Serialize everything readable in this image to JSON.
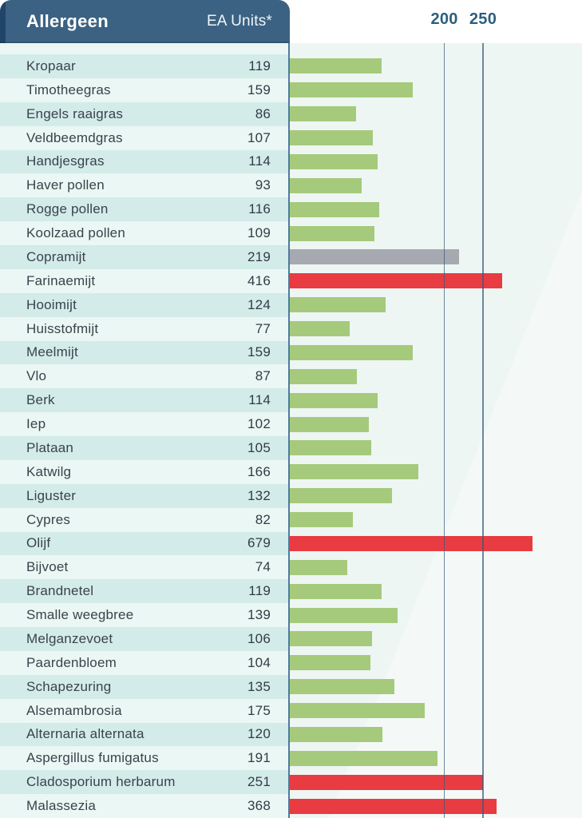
{
  "header": {
    "allergen_label": "Allergeen",
    "units_label": "EA Units*"
  },
  "axis": {
    "tick_labels": [
      "200",
      "250"
    ]
  },
  "colors": {
    "green": "#a5ca7c",
    "gray": "#a7a9b1",
    "red": "#e93b42",
    "header_bg": "#3b6282",
    "header_edge": "#214568",
    "row_dark": "#d3ecea",
    "row_light": "#eaf7f4",
    "chart_bg": "#edf6f3",
    "axis_line": "#4d7c9b",
    "tick_text": "#2c5e7f"
  },
  "chart_data": {
    "type": "bar",
    "orientation": "horizontal",
    "title": "",
    "xlabel": "EA Units*",
    "ylabel": "Allergeen",
    "x_ticks": [
      200,
      250
    ],
    "xlim": [
      0,
      250
    ],
    "axis_note": "axis linear to 250, compressed beyond 250; grid on at 200 and 250",
    "legend": "none",
    "categories": [
      "Kropaar",
      "Timotheegras",
      "Engels raaigras",
      "Veldbeemdgras",
      "Handjesgras",
      "Haver pollen",
      "Rogge pollen",
      "Koolzaad pollen",
      "Copramijt",
      "Farinaemijt",
      "Hooimijt",
      "Huisstofmijt",
      "Meelmijt",
      "Vlo",
      "Berk",
      "Iep",
      "Plataan",
      "Katwilg",
      "Liguster",
      "Cypres",
      "Olijf",
      "Bijvoet",
      "Brandnetel",
      "Smalle weegbree",
      "Melganzevoet",
      "Paardenbloem",
      "Schapezuring",
      "Alsemambrosia",
      "Alternaria alternata",
      "Aspergillus fumigatus",
      "Cladosporium herbarum",
      "Malassezia"
    ],
    "values": [
      119,
      159,
      86,
      107,
      114,
      93,
      116,
      109,
      219,
      416,
      124,
      77,
      159,
      87,
      114,
      102,
      105,
      166,
      132,
      82,
      679,
      74,
      119,
      139,
      106,
      104,
      135,
      175,
      120,
      191,
      251,
      368
    ],
    "bar_color_keys": [
      "green",
      "green",
      "green",
      "green",
      "green",
      "green",
      "green",
      "green",
      "gray",
      "red",
      "green",
      "green",
      "green",
      "green",
      "green",
      "green",
      "green",
      "green",
      "green",
      "green",
      "red",
      "green",
      "green",
      "green",
      "green",
      "green",
      "green",
      "green",
      "green",
      "green",
      "red",
      "red"
    ]
  }
}
